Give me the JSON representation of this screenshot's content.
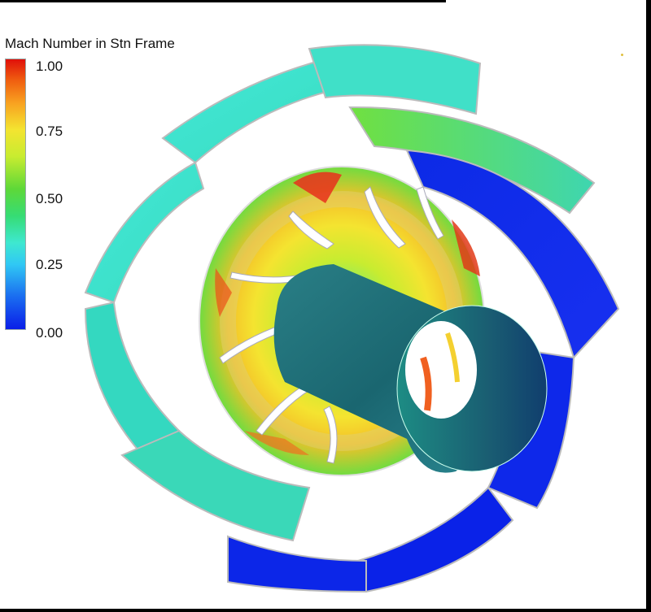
{
  "legend": {
    "title": "Mach Number in Stn Frame",
    "ticks": [
      "1.00",
      "0.75",
      "0.50",
      "0.25",
      "0.00"
    ]
  },
  "colors": {
    "high": "#e0100a",
    "mid_high": "#f4e430",
    "mid": "#5ed838",
    "mid_low": "#3ee8d0",
    "low": "#0a1ee8",
    "shaft": "#1e6e78"
  }
}
